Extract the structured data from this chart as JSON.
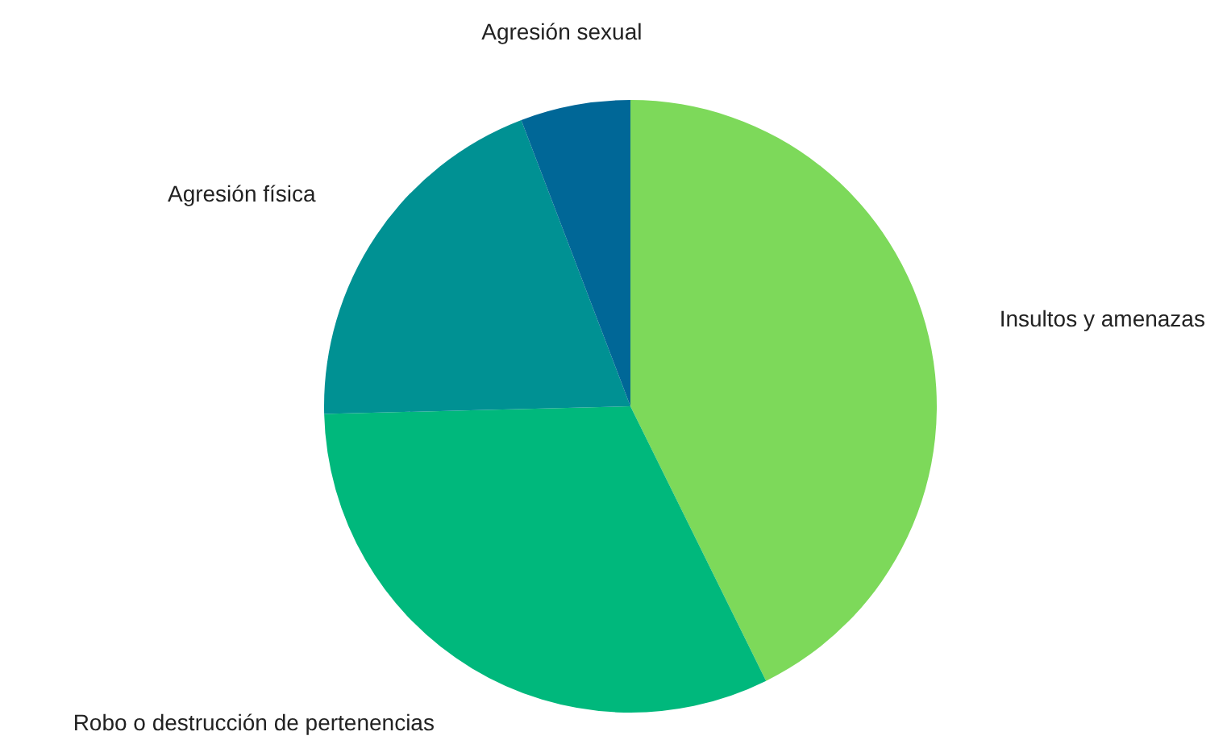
{
  "chart_data": {
    "type": "pie",
    "categories": [
      "Insultos y amenazas",
      "Robo o destrucción de pertenencias",
      "Agresión física",
      "Agresión sexual"
    ],
    "values": [
      42.7,
      31.9,
      19.6,
      5.8
    ],
    "colors": [
      "#7dd95a",
      "#00b87c",
      "#009193",
      "#006797"
    ]
  }
}
